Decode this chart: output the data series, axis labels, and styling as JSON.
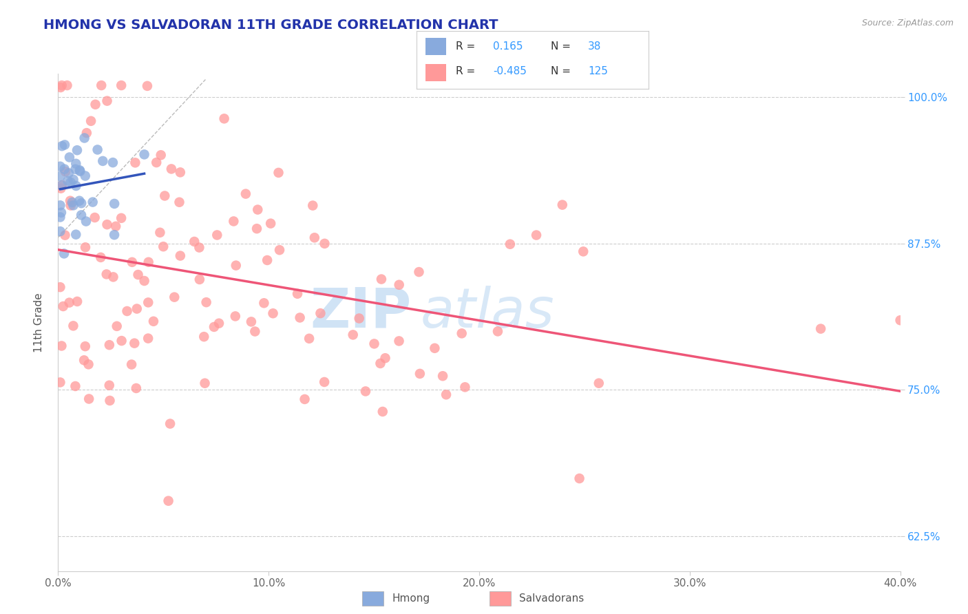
{
  "title": "HMONG VS SALVADORAN 11TH GRADE CORRELATION CHART",
  "source_text": "Source: ZipAtlas.com",
  "ylabel": "11th Grade",
  "xlim": [
    0.0,
    0.4
  ],
  "ylim": [
    0.595,
    1.02
  ],
  "xticks": [
    0.0,
    0.1,
    0.2,
    0.3,
    0.4
  ],
  "xtick_labels": [
    "0.0%",
    "10.0%",
    "20.0%",
    "30.0%",
    "40.0%"
  ],
  "yticks": [
    0.625,
    0.75,
    0.875,
    1.0
  ],
  "ytick_labels": [
    "62.5%",
    "75.0%",
    "87.5%",
    "100.0%"
  ],
  "hmong_R": 0.165,
  "hmong_N": 38,
  "salv_R": -0.485,
  "salv_N": 125,
  "hmong_color": "#88AADD",
  "salv_color": "#FF9999",
  "hmong_trend_color": "#3355BB",
  "salv_trend_color": "#EE5577",
  "diagonal_color": "#BBBBBB",
  "grid_color": "#CCCCCC",
  "background_color": "#FFFFFF",
  "title_color": "#2233AA",
  "legend_R_color": "#3399FF",
  "legend_N_color": "#3399FF",
  "watermark_zip": "ZIP",
  "watermark_atlas": "atlas",
  "watermark_color": "#AACCEE"
}
